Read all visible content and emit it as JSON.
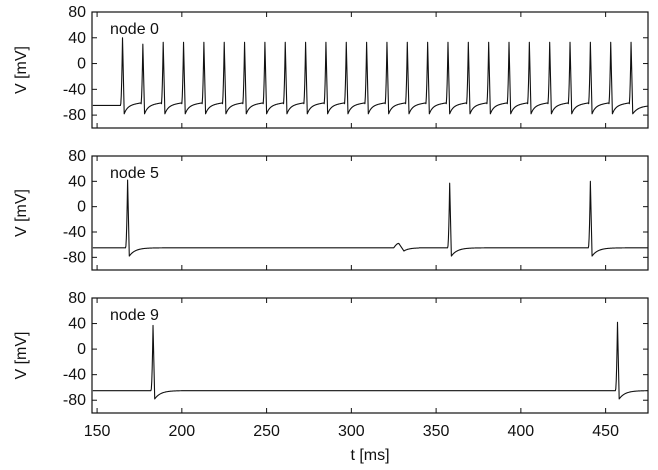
{
  "chart_data": {
    "type": "line",
    "xlabel": "t [ms]",
    "ylabel": "V [mV]",
    "xlim": [
      147,
      475
    ],
    "ylim": [
      -100,
      80
    ],
    "x_ticks": [
      150,
      200,
      250,
      300,
      350,
      400,
      450
    ],
    "x_tick_labels": [
      "150",
      "200",
      "250",
      "300",
      "350",
      "400",
      "450"
    ],
    "y_ticks": [
      80,
      40,
      0,
      -40,
      -80
    ],
    "y_tick_labels": [
      "80",
      "40",
      "0",
      "-40",
      "-80"
    ],
    "grid": false,
    "resting_potential": -65,
    "panels": [
      {
        "label": "node 0",
        "spike_times": [
          165,
          177,
          189,
          201,
          213,
          225,
          237,
          249,
          261,
          273,
          285,
          297,
          309,
          321,
          333,
          345,
          357,
          369,
          381,
          393,
          405,
          417,
          429,
          441,
          453,
          465
        ],
        "spike_peaks": [
          40,
          30,
          33,
          33,
          33,
          33,
          33,
          33,
          33,
          33,
          33,
          33,
          33,
          33,
          33,
          33,
          33,
          33,
          33,
          33,
          33,
          33,
          33,
          33,
          33,
          33
        ]
      },
      {
        "label": "node 5",
        "spike_times": [
          168,
          358,
          441
        ],
        "spike_peaks": [
          42,
          37,
          40
        ],
        "subthreshold_bump": {
          "t": 328,
          "v": -58
        }
      },
      {
        "label": "node 9",
        "spike_times": [
          183,
          457
        ],
        "spike_peaks": [
          37,
          42
        ]
      }
    ]
  }
}
